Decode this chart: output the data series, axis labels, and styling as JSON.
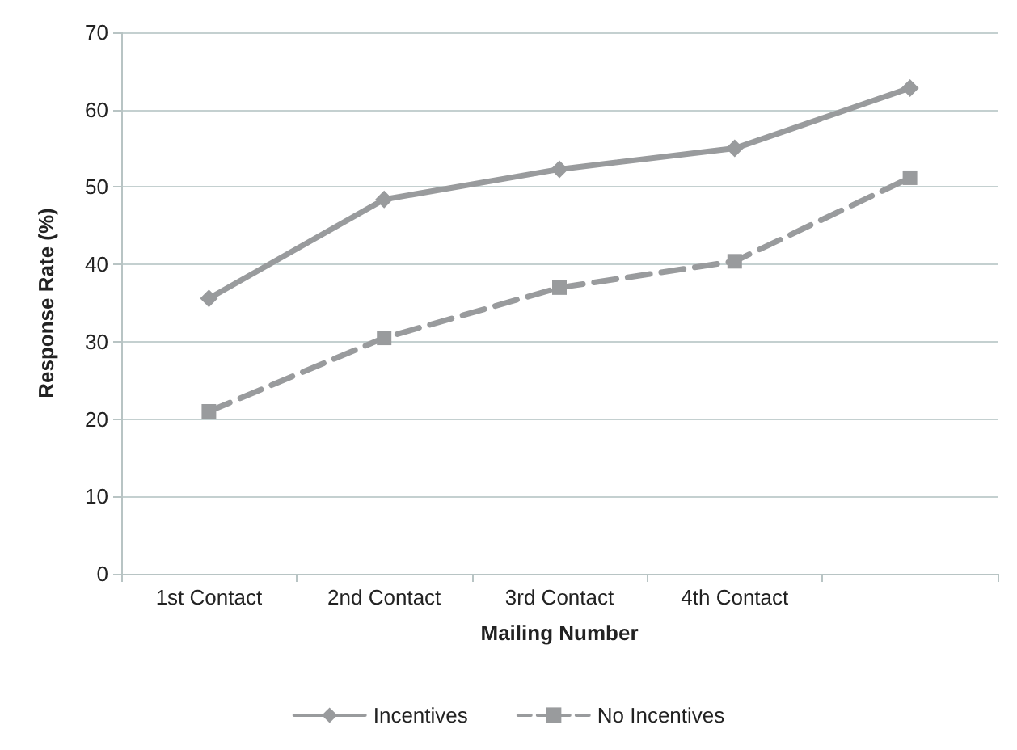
{
  "chart_data": {
    "type": "line",
    "xlabel": "Mailing Number",
    "ylabel": "Response Rate (%)",
    "categories": [
      "1st Contact",
      "2nd Contact",
      "3rd Contact",
      "4th Contact",
      null
    ],
    "series": [
      {
        "name": "Incentives",
        "color": "#999b9d",
        "marker": "diamond",
        "line_style": "solid",
        "values": [
          35.6,
          48.4,
          52.3,
          55.0,
          62.8
        ]
      },
      {
        "name": "No Incentives",
        "color": "#999b9d",
        "marker": "square",
        "line_style": "dashed",
        "values": [
          21.0,
          30.5,
          37.0,
          40.4,
          51.2
        ]
      }
    ],
    "ylim": [
      0,
      70
    ],
    "yticks": [
      0,
      10,
      20,
      30,
      40,
      50,
      60,
      70
    ],
    "grid": "y",
    "legend": "bottom"
  }
}
